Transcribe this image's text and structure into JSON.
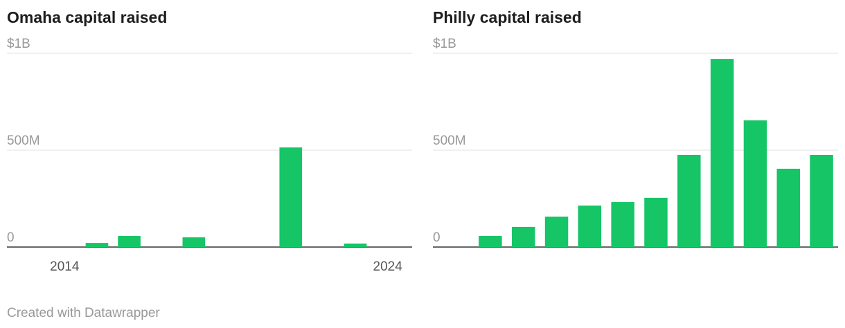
{
  "chart_data": [
    {
      "type": "bar",
      "title": "Omaha capital raised",
      "categories": [
        "2014",
        null,
        null,
        null,
        null,
        null,
        null,
        null,
        null,
        null,
        "2024"
      ],
      "values": [
        0,
        21,
        57,
        0,
        50,
        0,
        0,
        514,
        0,
        18,
        0
      ],
      "color": "#15c566",
      "ylim": [
        0,
        1000
      ],
      "yticks": [
        0,
        {
          "value": 500,
          "label": "500M"
        },
        {
          "value": 1000,
          "label": "$1B"
        }
      ],
      "grid": true
    },
    {
      "type": "bar",
      "title": "Philly capital raised",
      "categories": [
        null,
        null,
        null,
        null,
        null,
        null,
        null,
        null,
        null,
        null,
        null
      ],
      "values": [
        57,
        104,
        157,
        214,
        232,
        254,
        475,
        971,
        654,
        404,
        475
      ],
      "color": "#15c566",
      "ylim": [
        0,
        1000
      ],
      "yticks": [
        0,
        {
          "value": 500,
          "label": "500M"
        },
        {
          "value": 1000,
          "label": "$1B"
        }
      ],
      "grid": true
    }
  ],
  "footer": "Created with Datawrapper"
}
